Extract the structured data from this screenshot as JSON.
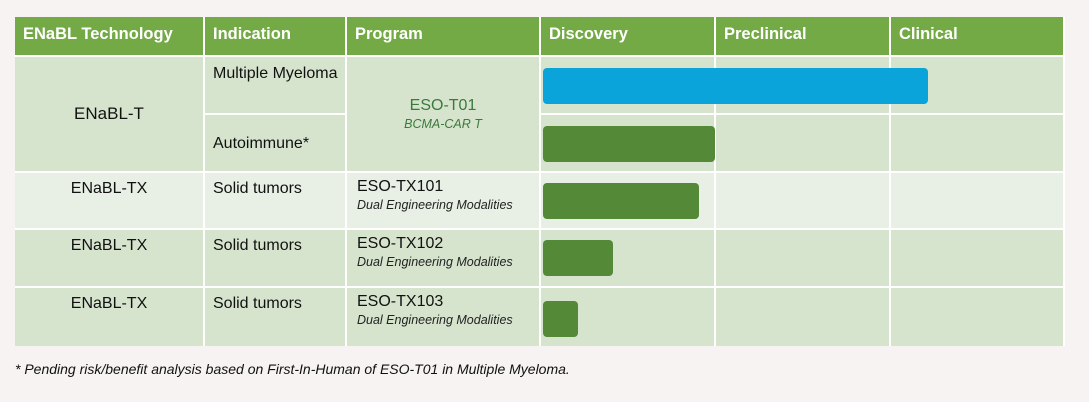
{
  "headers": [
    "ENaBL Technology",
    "Indication",
    "Program",
    "Discovery",
    "Preclinical",
    "Clinical"
  ],
  "rows": [
    {
      "technology": "ENaBL-T",
      "indications": [
        "Multiple Myeloma",
        "Autoimmune*"
      ],
      "program": "ESO-T01",
      "program_sub": "BCMA-CAR T"
    },
    {
      "technology": "ENaBL-TX",
      "indication": "Solid tumors",
      "program": "ESO-TX101",
      "program_sub": "Dual Engineering Modalities"
    },
    {
      "technology": "ENaBL-TX",
      "indication": "Solid tumors",
      "program": "ESO-TX102",
      "program_sub": "Dual Engineering Modalities"
    },
    {
      "technology": "ENaBL-TX",
      "indication": "Solid tumors",
      "program": "ESO-TX103",
      "program_sub": "Dual Engineering Modalities"
    }
  ],
  "progress": [
    {
      "program": "ESO-T01",
      "indication": "Multiple Myeloma",
      "stage_fraction": 2.2,
      "color": "#0aa3da"
    },
    {
      "program": "ESO-T01",
      "indication": "Autoimmune*",
      "stage_fraction": 0.98,
      "color": "#548a37"
    },
    {
      "program": "ESO-TX101",
      "indication": "Solid tumors",
      "stage_fraction": 0.89,
      "color": "#548a37"
    },
    {
      "program": "ESO-TX102",
      "indication": "Solid tumors",
      "stage_fraction": 0.4,
      "color": "#548a37"
    },
    {
      "program": "ESO-TX103",
      "indication": "Solid tumors",
      "stage_fraction": 0.2,
      "color": "#548a37"
    }
  ],
  "footnote": "* Pending risk/benefit analysis based on First-In-Human of ESO-T01 in Multiple Myeloma."
}
